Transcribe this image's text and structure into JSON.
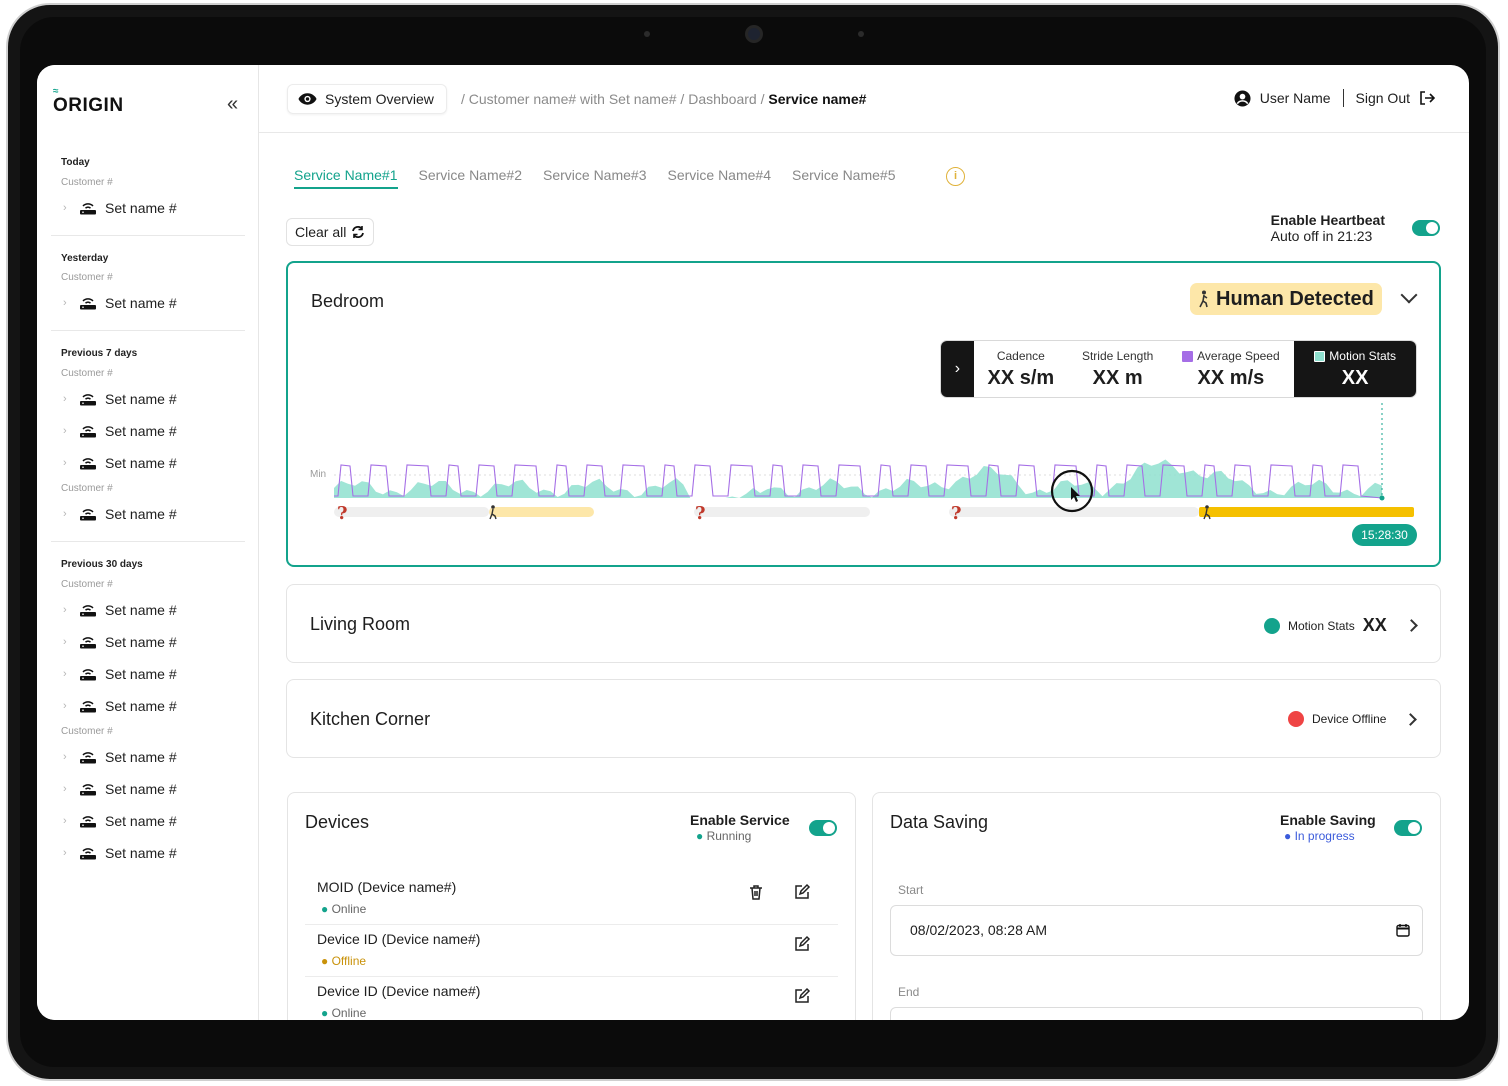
{
  "sidebar": {
    "logo": "ORIGIN",
    "groups": [
      {
        "title": "Today",
        "customer": "Customer #",
        "items": [
          "Set name #"
        ]
      },
      {
        "title": "Yesterday",
        "customer": "Customer #",
        "items": [
          "Set name #"
        ]
      },
      {
        "title": "Previous 7 days",
        "customer": "Customer #",
        "items": [
          "Set name #",
          "Set name #",
          "Set name #"
        ],
        "customer2": "Customer #",
        "items2": [
          "Set name #"
        ]
      },
      {
        "title": "Previous 30 days",
        "customer": "Customer #",
        "items": [
          "Set name #",
          "Set name #",
          "Set name #",
          "Set name #"
        ],
        "customer2": "Customer #",
        "items2": [
          "Set name #",
          "Set name #",
          "Set name #",
          "Set name #"
        ]
      }
    ]
  },
  "header": {
    "system_overview": "System Overview",
    "breadcrumb_prefix": "/ Customer name# with Set name# / Dashboard /",
    "breadcrumb_current": "Service name#",
    "user_name": "User Name",
    "sign_out": "Sign Out"
  },
  "tabs": [
    "Service Name#1",
    "Service Name#2",
    "Service Name#3",
    "Service Name#4",
    "Service Name#5"
  ],
  "toolbar": {
    "clear_all": "Clear all",
    "heartbeat_title": "Enable Heartbeat",
    "heartbeat_sub": "Auto off in 21:23"
  },
  "rooms": {
    "bedroom": {
      "title": "Bedroom",
      "status": "Human Detected",
      "stats": [
        {
          "label": "Cadence",
          "value": "XX s/m"
        },
        {
          "label": "Stride Length",
          "value": "XX m"
        },
        {
          "label": "Average Speed",
          "value": "XX m/s"
        },
        {
          "label": "Motion Stats",
          "value": "XX"
        }
      ],
      "chart_axis_label": "Min",
      "time": "15:28:30"
    },
    "living": {
      "title": "Living Room",
      "meta_label": "Motion Stats",
      "meta_value": "XX"
    },
    "kitchen": {
      "title": "Kitchen Corner",
      "meta_label": "Device Offline"
    }
  },
  "devices": {
    "title": "Devices",
    "enable_label": "Enable Service",
    "enable_status": "Running",
    "rows": [
      {
        "name": "MOID (Device name#)",
        "status": "Online"
      },
      {
        "name": "Device ID (Device name#)",
        "status": "Offline"
      },
      {
        "name": "Device ID (Device name#)",
        "status": "Online"
      }
    ]
  },
  "saving": {
    "title": "Data Saving",
    "enable_label": "Enable Saving",
    "enable_status": "In progress",
    "start_label": "Start",
    "start_value": "08/02/2023, 08:28 AM",
    "end_label": "End"
  },
  "colors": {
    "accent": "#13a38c",
    "detected_bg": "#fde7a9",
    "timeline_active": "#f5c000",
    "offline": "#ef4444",
    "online": "#13a38c",
    "warning": "#e0a100",
    "progress": "#3b5bdb",
    "series_motion": "#a56ee6"
  }
}
